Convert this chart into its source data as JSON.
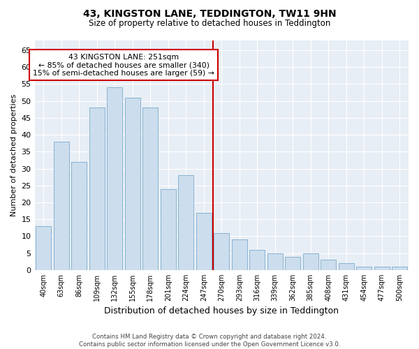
{
  "title": "43, KINGSTON LANE, TEDDINGTON, TW11 9HN",
  "subtitle": "Size of property relative to detached houses in Teddington",
  "xlabel": "Distribution of detached houses by size in Teddington",
  "ylabel": "Number of detached properties",
  "footer_line1": "Contains HM Land Registry data © Crown copyright and database right 2024.",
  "footer_line2": "Contains public sector information licensed under the Open Government Licence v3.0.",
  "bar_labels": [
    "40sqm",
    "63sqm",
    "86sqm",
    "109sqm",
    "132sqm",
    "155sqm",
    "178sqm",
    "201sqm",
    "224sqm",
    "247sqm",
    "270sqm",
    "293sqm",
    "316sqm",
    "339sqm",
    "362sqm",
    "385sqm",
    "408sqm",
    "431sqm",
    "454sqm",
    "477sqm",
    "500sqm"
  ],
  "bar_values": [
    13,
    38,
    32,
    48,
    54,
    51,
    48,
    24,
    28,
    17,
    11,
    9,
    6,
    5,
    4,
    5,
    3,
    2,
    1,
    1,
    1
  ],
  "bar_color": "#ccdded",
  "bar_edge_color": "#7aabcc",
  "annotation_text": "43 KINGSTON LANE: 251sqm\n← 85% of detached houses are smaller (340)\n15% of semi-detached houses are larger (59) →",
  "vline_x_index": 9.5,
  "vline_color": "#cc0000",
  "annotation_box_color": "#cc0000",
  "fig_background": "#ffffff",
  "axes_background": "#e8eef5",
  "grid_color": "#ffffff",
  "ylim": [
    0,
    68
  ],
  "yticks": [
    0,
    5,
    10,
    15,
    20,
    25,
    30,
    35,
    40,
    45,
    50,
    55,
    60,
    65
  ]
}
